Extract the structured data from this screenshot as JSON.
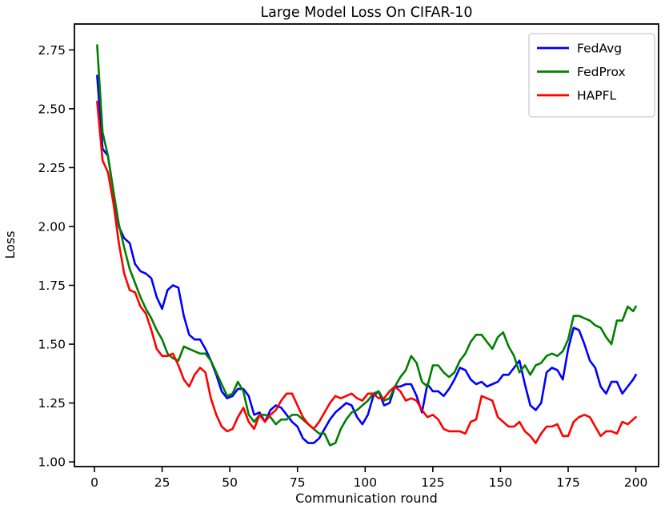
{
  "page": {
    "background": "#ffffff"
  },
  "chart_data": {
    "type": "line",
    "title": "Large Model Loss On CIFAR-10",
    "xlabel": "Communication round",
    "ylabel": "Loss",
    "grid": false,
    "legend_position": "upper right",
    "axis_color": "#000000",
    "xlim": [
      -7.4,
      208.4
    ],
    "ylim": [
      0.98,
      2.86
    ],
    "xticks": [
      0,
      25,
      50,
      75,
      100,
      125,
      150,
      175,
      200
    ],
    "yticks": [
      1.0,
      1.25,
      1.5,
      1.75,
      2.0,
      2.25,
      2.5,
      2.75
    ],
    "x": [
      1,
      3,
      5,
      7,
      9,
      11,
      13,
      15,
      17,
      19,
      21,
      23,
      25,
      27,
      29,
      31,
      33,
      35,
      37,
      39,
      41,
      43,
      45,
      47,
      49,
      51,
      53,
      55,
      57,
      59,
      61,
      63,
      65,
      67,
      69,
      71,
      73,
      75,
      77,
      79,
      81,
      83,
      85,
      87,
      89,
      91,
      93,
      95,
      97,
      99,
      101,
      103,
      105,
      107,
      109,
      111,
      113,
      115,
      117,
      119,
      121,
      123,
      125,
      127,
      129,
      131,
      133,
      135,
      137,
      139,
      141,
      143,
      145,
      147,
      149,
      151,
      153,
      155,
      157,
      159,
      161,
      163,
      165,
      167,
      169,
      171,
      173,
      175,
      177,
      179,
      181,
      183,
      185,
      187,
      189,
      191,
      193,
      195,
      197,
      199,
      200
    ],
    "series": [
      {
        "name": "FedAvg",
        "color": "#0000ff",
        "values": [
          2.64,
          2.33,
          2.3,
          2.15,
          2.0,
          1.95,
          1.93,
          1.84,
          1.81,
          1.8,
          1.78,
          1.7,
          1.65,
          1.73,
          1.75,
          1.74,
          1.62,
          1.54,
          1.52,
          1.52,
          1.48,
          1.43,
          1.37,
          1.3,
          1.27,
          1.28,
          1.31,
          1.31,
          1.28,
          1.2,
          1.21,
          1.17,
          1.22,
          1.24,
          1.23,
          1.2,
          1.17,
          1.15,
          1.1,
          1.08,
          1.08,
          1.1,
          1.14,
          1.18,
          1.21,
          1.23,
          1.25,
          1.24,
          1.19,
          1.16,
          1.2,
          1.28,
          1.3,
          1.24,
          1.25,
          1.32,
          1.32,
          1.33,
          1.33,
          1.28,
          1.21,
          1.33,
          1.3,
          1.3,
          1.28,
          1.31,
          1.35,
          1.4,
          1.39,
          1.35,
          1.33,
          1.34,
          1.32,
          1.33,
          1.34,
          1.37,
          1.37,
          1.4,
          1.43,
          1.33,
          1.24,
          1.22,
          1.25,
          1.38,
          1.4,
          1.39,
          1.35,
          1.48,
          1.57,
          1.56,
          1.5,
          1.43,
          1.4,
          1.32,
          1.29,
          1.34,
          1.34,
          1.29,
          1.32,
          1.35,
          1.37
        ]
      },
      {
        "name": "FedProx",
        "color": "#008000",
        "values": [
          2.77,
          2.4,
          2.3,
          2.15,
          2.01,
          1.91,
          1.82,
          1.76,
          1.7,
          1.65,
          1.61,
          1.56,
          1.52,
          1.46,
          1.44,
          1.43,
          1.49,
          1.48,
          1.47,
          1.46,
          1.46,
          1.43,
          1.38,
          1.33,
          1.28,
          1.29,
          1.34,
          1.3,
          1.2,
          1.17,
          1.2,
          1.2,
          1.19,
          1.16,
          1.18,
          1.18,
          1.2,
          1.2,
          1.18,
          1.16,
          1.14,
          1.12,
          1.12,
          1.07,
          1.08,
          1.14,
          1.18,
          1.21,
          1.22,
          1.24,
          1.26,
          1.29,
          1.3,
          1.26,
          1.27,
          1.32,
          1.36,
          1.39,
          1.45,
          1.42,
          1.34,
          1.32,
          1.41,
          1.41,
          1.38,
          1.36,
          1.38,
          1.43,
          1.46,
          1.51,
          1.54,
          1.54,
          1.51,
          1.48,
          1.53,
          1.55,
          1.49,
          1.45,
          1.38,
          1.41,
          1.37,
          1.41,
          1.42,
          1.45,
          1.46,
          1.45,
          1.47,
          1.52,
          1.62,
          1.62,
          1.61,
          1.6,
          1.58,
          1.57,
          1.53,
          1.5,
          1.6,
          1.6,
          1.66,
          1.64,
          1.66
        ]
      },
      {
        "name": "HAPFL",
        "color": "#ff0000",
        "values": [
          2.53,
          2.28,
          2.23,
          2.1,
          1.93,
          1.8,
          1.73,
          1.72,
          1.66,
          1.63,
          1.56,
          1.48,
          1.45,
          1.45,
          1.46,
          1.41,
          1.35,
          1.32,
          1.37,
          1.4,
          1.38,
          1.27,
          1.2,
          1.15,
          1.13,
          1.14,
          1.19,
          1.23,
          1.17,
          1.14,
          1.2,
          1.17,
          1.2,
          1.22,
          1.26,
          1.29,
          1.29,
          1.24,
          1.19,
          1.16,
          1.14,
          1.17,
          1.21,
          1.25,
          1.28,
          1.27,
          1.28,
          1.29,
          1.27,
          1.26,
          1.29,
          1.29,
          1.27,
          1.27,
          1.3,
          1.32,
          1.3,
          1.26,
          1.27,
          1.26,
          1.22,
          1.19,
          1.2,
          1.18,
          1.14,
          1.13,
          1.13,
          1.13,
          1.12,
          1.17,
          1.18,
          1.28,
          1.27,
          1.26,
          1.19,
          1.17,
          1.15,
          1.15,
          1.17,
          1.13,
          1.11,
          1.08,
          1.12,
          1.15,
          1.15,
          1.16,
          1.11,
          1.11,
          1.17,
          1.19,
          1.2,
          1.19,
          1.15,
          1.11,
          1.13,
          1.13,
          1.12,
          1.17,
          1.16,
          1.18,
          1.19
        ]
      }
    ]
  }
}
